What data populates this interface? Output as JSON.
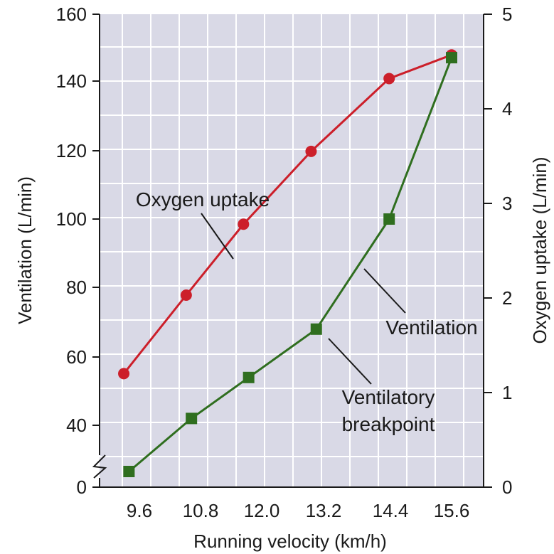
{
  "chart_data": {
    "type": "line",
    "x_label": "Running velocity (km/h)",
    "x_ticks": [
      "9.6",
      "10.8",
      "12.0",
      "13.2",
      "14.4",
      "15.6"
    ],
    "y_left": {
      "label": "Ventilation (L/min)",
      "ticks": [
        "0",
        "40",
        "60",
        "80",
        "100",
        "120",
        "140",
        "160"
      ],
      "range": [
        30,
        160
      ],
      "axis_break": true
    },
    "y_right": {
      "label": "Oxygen uptake (L/min)",
      "ticks": [
        "0",
        "1",
        "2",
        "3",
        "4",
        "5"
      ],
      "range": [
        0,
        5
      ]
    },
    "grid": true,
    "series": [
      {
        "name": "Oxygen uptake",
        "axis": "right",
        "color": "#cc1f2a",
        "marker": "circle",
        "points": [
          {
            "x": 9.3,
            "y": 1.2
          },
          {
            "x": 10.5,
            "y": 2.03
          },
          {
            "x": 11.6,
            "y": 2.78
          },
          {
            "x": 12.9,
            "y": 3.55
          },
          {
            "x": 14.4,
            "y": 4.32
          },
          {
            "x": 15.6,
            "y": 4.57
          }
        ]
      },
      {
        "name": "Ventilation",
        "axis": "left",
        "color": "#2f6e1f",
        "marker": "square",
        "points": [
          {
            "x": 9.4,
            "y": 32
          },
          {
            "x": 10.6,
            "y": 42
          },
          {
            "x": 11.7,
            "y": 54
          },
          {
            "x": 13.0,
            "y": 68
          },
          {
            "x": 14.4,
            "y": 100
          },
          {
            "x": 15.6,
            "y": 147
          }
        ]
      }
    ],
    "annotations": [
      {
        "text": "Oxygen uptake",
        "target": "Oxygen uptake"
      },
      {
        "text": "Ventilation",
        "target": "Ventilation"
      },
      {
        "text": "Ventilatory",
        "text2": "breakpoint",
        "target": "Ventilation"
      }
    ]
  },
  "style": {
    "plot_bg": "#d9d9e6",
    "grid_color": "#ffffff",
    "axis_color": "#1a1a1a"
  }
}
